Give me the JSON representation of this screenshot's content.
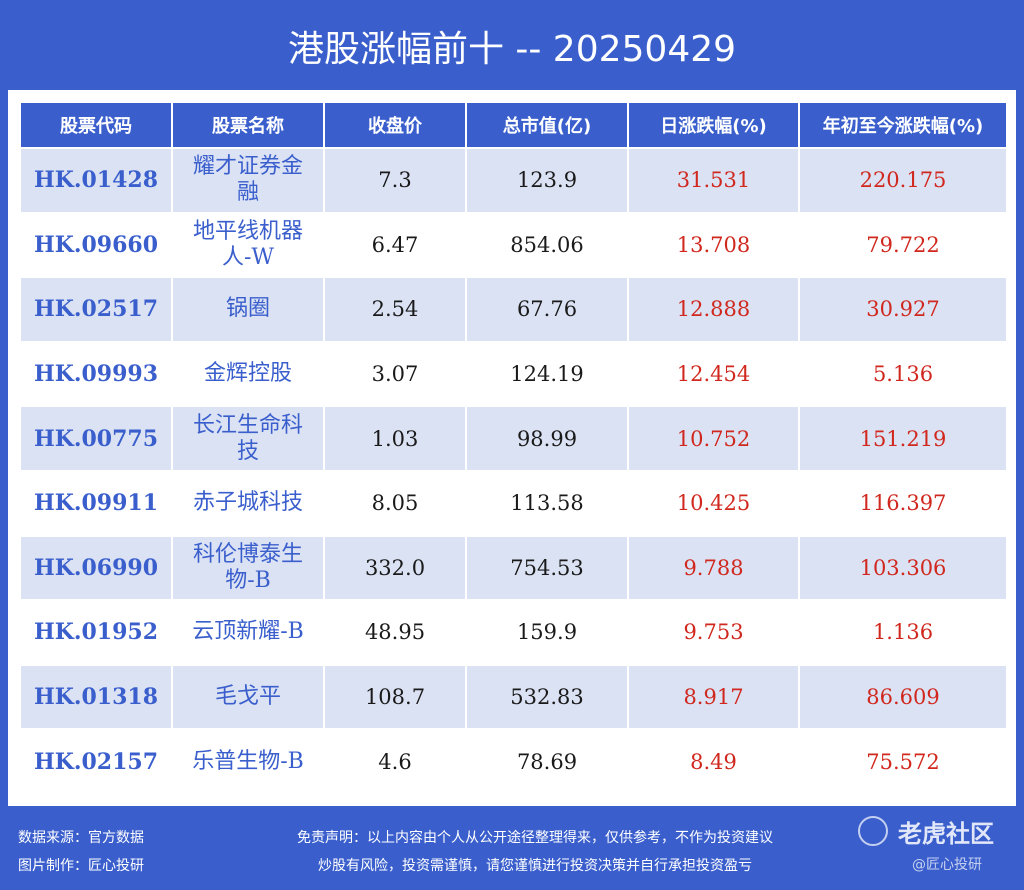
{
  "title": "港股涨幅前十 -- 20250429",
  "chart_data": {
    "type": "table",
    "columns": [
      "股票代码",
      "股票名称",
      "收盘价",
      "总市值(亿)",
      "日涨跌幅(%)",
      "年初至今涨跌幅(%)"
    ],
    "rows": [
      {
        "code": "HK.01428",
        "name": "耀才证券金融",
        "close": "7.3",
        "cap": "123.9",
        "day": "31.531",
        "ytd": "220.175"
      },
      {
        "code": "HK.09660",
        "name": "地平线机器人-W",
        "close": "6.47",
        "cap": "854.06",
        "day": "13.708",
        "ytd": "79.722"
      },
      {
        "code": "HK.02517",
        "name": "锅圈",
        "close": "2.54",
        "cap": "67.76",
        "day": "12.888",
        "ytd": "30.927"
      },
      {
        "code": "HK.09993",
        "name": "金辉控股",
        "close": "3.07",
        "cap": "124.19",
        "day": "12.454",
        "ytd": "5.136"
      },
      {
        "code": "HK.00775",
        "name": "长江生命科技",
        "close": "1.03",
        "cap": "98.99",
        "day": "10.752",
        "ytd": "151.219"
      },
      {
        "code": "HK.09911",
        "name": "赤子城科技",
        "close": "8.05",
        "cap": "113.58",
        "day": "10.425",
        "ytd": "116.397"
      },
      {
        "code": "HK.06990",
        "name": "科伦博泰生物-B",
        "close": "332.0",
        "cap": "754.53",
        "day": "9.788",
        "ytd": "103.306"
      },
      {
        "code": "HK.01952",
        "name": "云顶新耀-B",
        "close": "48.95",
        "cap": "159.9",
        "day": "9.753",
        "ytd": "1.136"
      },
      {
        "code": "HK.01318",
        "name": "毛戈平",
        "close": "108.7",
        "cap": "532.83",
        "day": "8.917",
        "ytd": "86.609"
      },
      {
        "code": "HK.02157",
        "name": "乐普生物-B",
        "close": "4.6",
        "cap": "78.69",
        "day": "8.49",
        "ytd": "75.572"
      }
    ]
  },
  "footer": {
    "source": "数据来源：官方数据",
    "made_by": "图片制作：匠心投研",
    "disclaimer_1": "免责声明：以上内容由个人从公开途径整理得来，仅供参考，不作为投资建议",
    "disclaimer_2": "炒股有风险，投资需谨慎，请您谨慎进行投资决策并自行承担投资盈亏"
  },
  "watermark": {
    "brand": "老虎社区",
    "sub": "@匠心投研"
  },
  "colors": {
    "primary": "#3a5fcd",
    "row_alt": "#dbe2f4",
    "up": "#d0281e"
  }
}
